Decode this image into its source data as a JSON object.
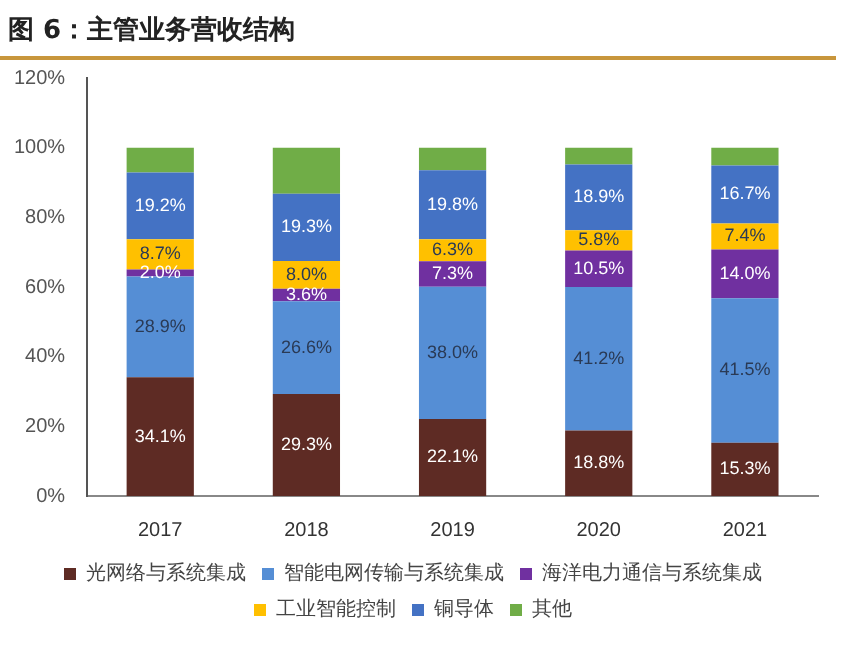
{
  "chart_data": {
    "type": "bar",
    "title": "图 6：主管业务营收结构",
    "stacked": true,
    "categories": [
      "2017",
      "2018",
      "2019",
      "2020",
      "2021"
    ],
    "ylim": [
      0,
      120
    ],
    "yticks": [
      {
        "value": 0,
        "label": "0%"
      },
      {
        "value": 20,
        "label": "20%"
      },
      {
        "value": 40,
        "label": "40%"
      },
      {
        "value": 60,
        "label": "60%"
      },
      {
        "value": 80,
        "label": "80%"
      },
      {
        "value": 100,
        "label": "100%"
      },
      {
        "value": 120,
        "label": "120%"
      }
    ],
    "grid": false,
    "legend": "bottom",
    "series": [
      {
        "name": "光网络与系统集成",
        "color": "#5e2b24",
        "values": [
          34.1,
          29.3,
          22.1,
          18.8,
          15.3
        ],
        "value_labels": [
          "34.1%",
          "29.3%",
          "22.1%",
          "18.8%",
          "15.3%"
        ]
      },
      {
        "name": "智能电网传输与系统集成",
        "color": "#558ed5",
        "values": [
          28.9,
          26.6,
          38.0,
          41.2,
          41.5
        ],
        "value_labels": [
          "28.9%",
          "26.6%",
          "38.0%",
          "41.2%",
          "41.5%"
        ]
      },
      {
        "name": "海洋电力通信与系统集成",
        "color": "#7030a0",
        "values": [
          2.0,
          3.6,
          7.3,
          10.5,
          14.0
        ],
        "value_labels": [
          "2.0%",
          "3.6%",
          "7.3%",
          "10.5%",
          "14.0%"
        ]
      },
      {
        "name": "工业智能控制",
        "color": "#ffc000",
        "values": [
          8.7,
          8.0,
          6.3,
          5.8,
          7.4
        ],
        "value_labels": [
          "8.7%",
          "8.0%",
          "6.3%",
          "5.8%",
          "7.4%"
        ]
      },
      {
        "name": "铜导体",
        "color": "#4472c4",
        "values": [
          19.2,
          19.3,
          19.8,
          18.9,
          16.7
        ],
        "value_labels": [
          "19.2%",
          "19.3%",
          "19.8%",
          "18.9%",
          "16.7%"
        ]
      },
      {
        "name": "其他",
        "color": "#70ad47",
        "values": [
          7.1,
          13.2,
          6.5,
          4.8,
          5.1
        ]
      }
    ]
  }
}
